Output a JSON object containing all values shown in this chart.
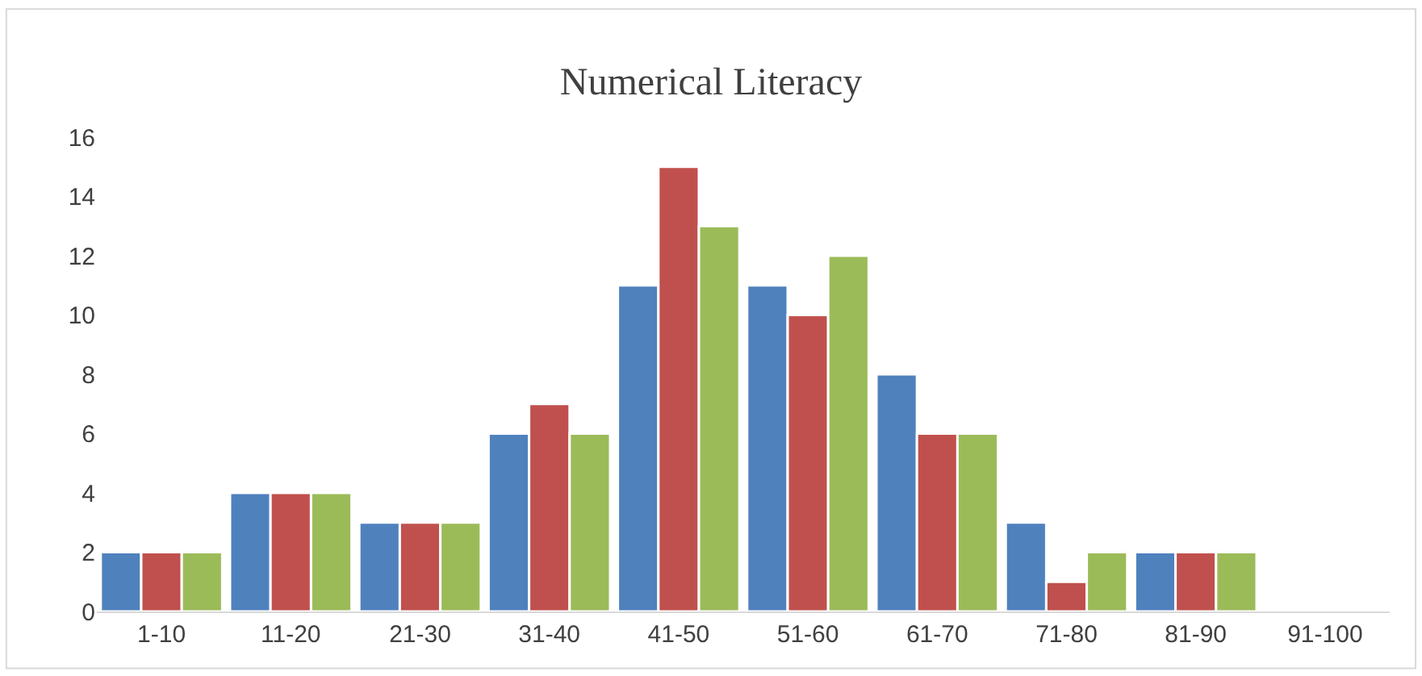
{
  "chart_data": {
    "type": "bar",
    "title": "Numerical Literacy",
    "categories": [
      "1-10",
      "11-20",
      "21-30",
      "31-40",
      "41-50",
      "51-60",
      "61-70",
      "71-80",
      "81-90",
      "91-100"
    ],
    "series": [
      {
        "color": "#4f81bd",
        "values": [
          2,
          4,
          3,
          6,
          11,
          11,
          8,
          3,
          2,
          0
        ]
      },
      {
        "color": "#c0504d",
        "values": [
          2,
          4,
          3,
          7,
          15,
          10,
          6,
          1,
          2,
          0
        ]
      },
      {
        "color": "#9bbb59",
        "values": [
          2,
          4,
          3,
          6,
          13,
          12,
          6,
          2,
          2,
          0
        ]
      }
    ],
    "ylim": [
      0,
      16
    ],
    "yticks": [
      0,
      2,
      4,
      6,
      8,
      10,
      12,
      14,
      16
    ],
    "grid": false
  }
}
